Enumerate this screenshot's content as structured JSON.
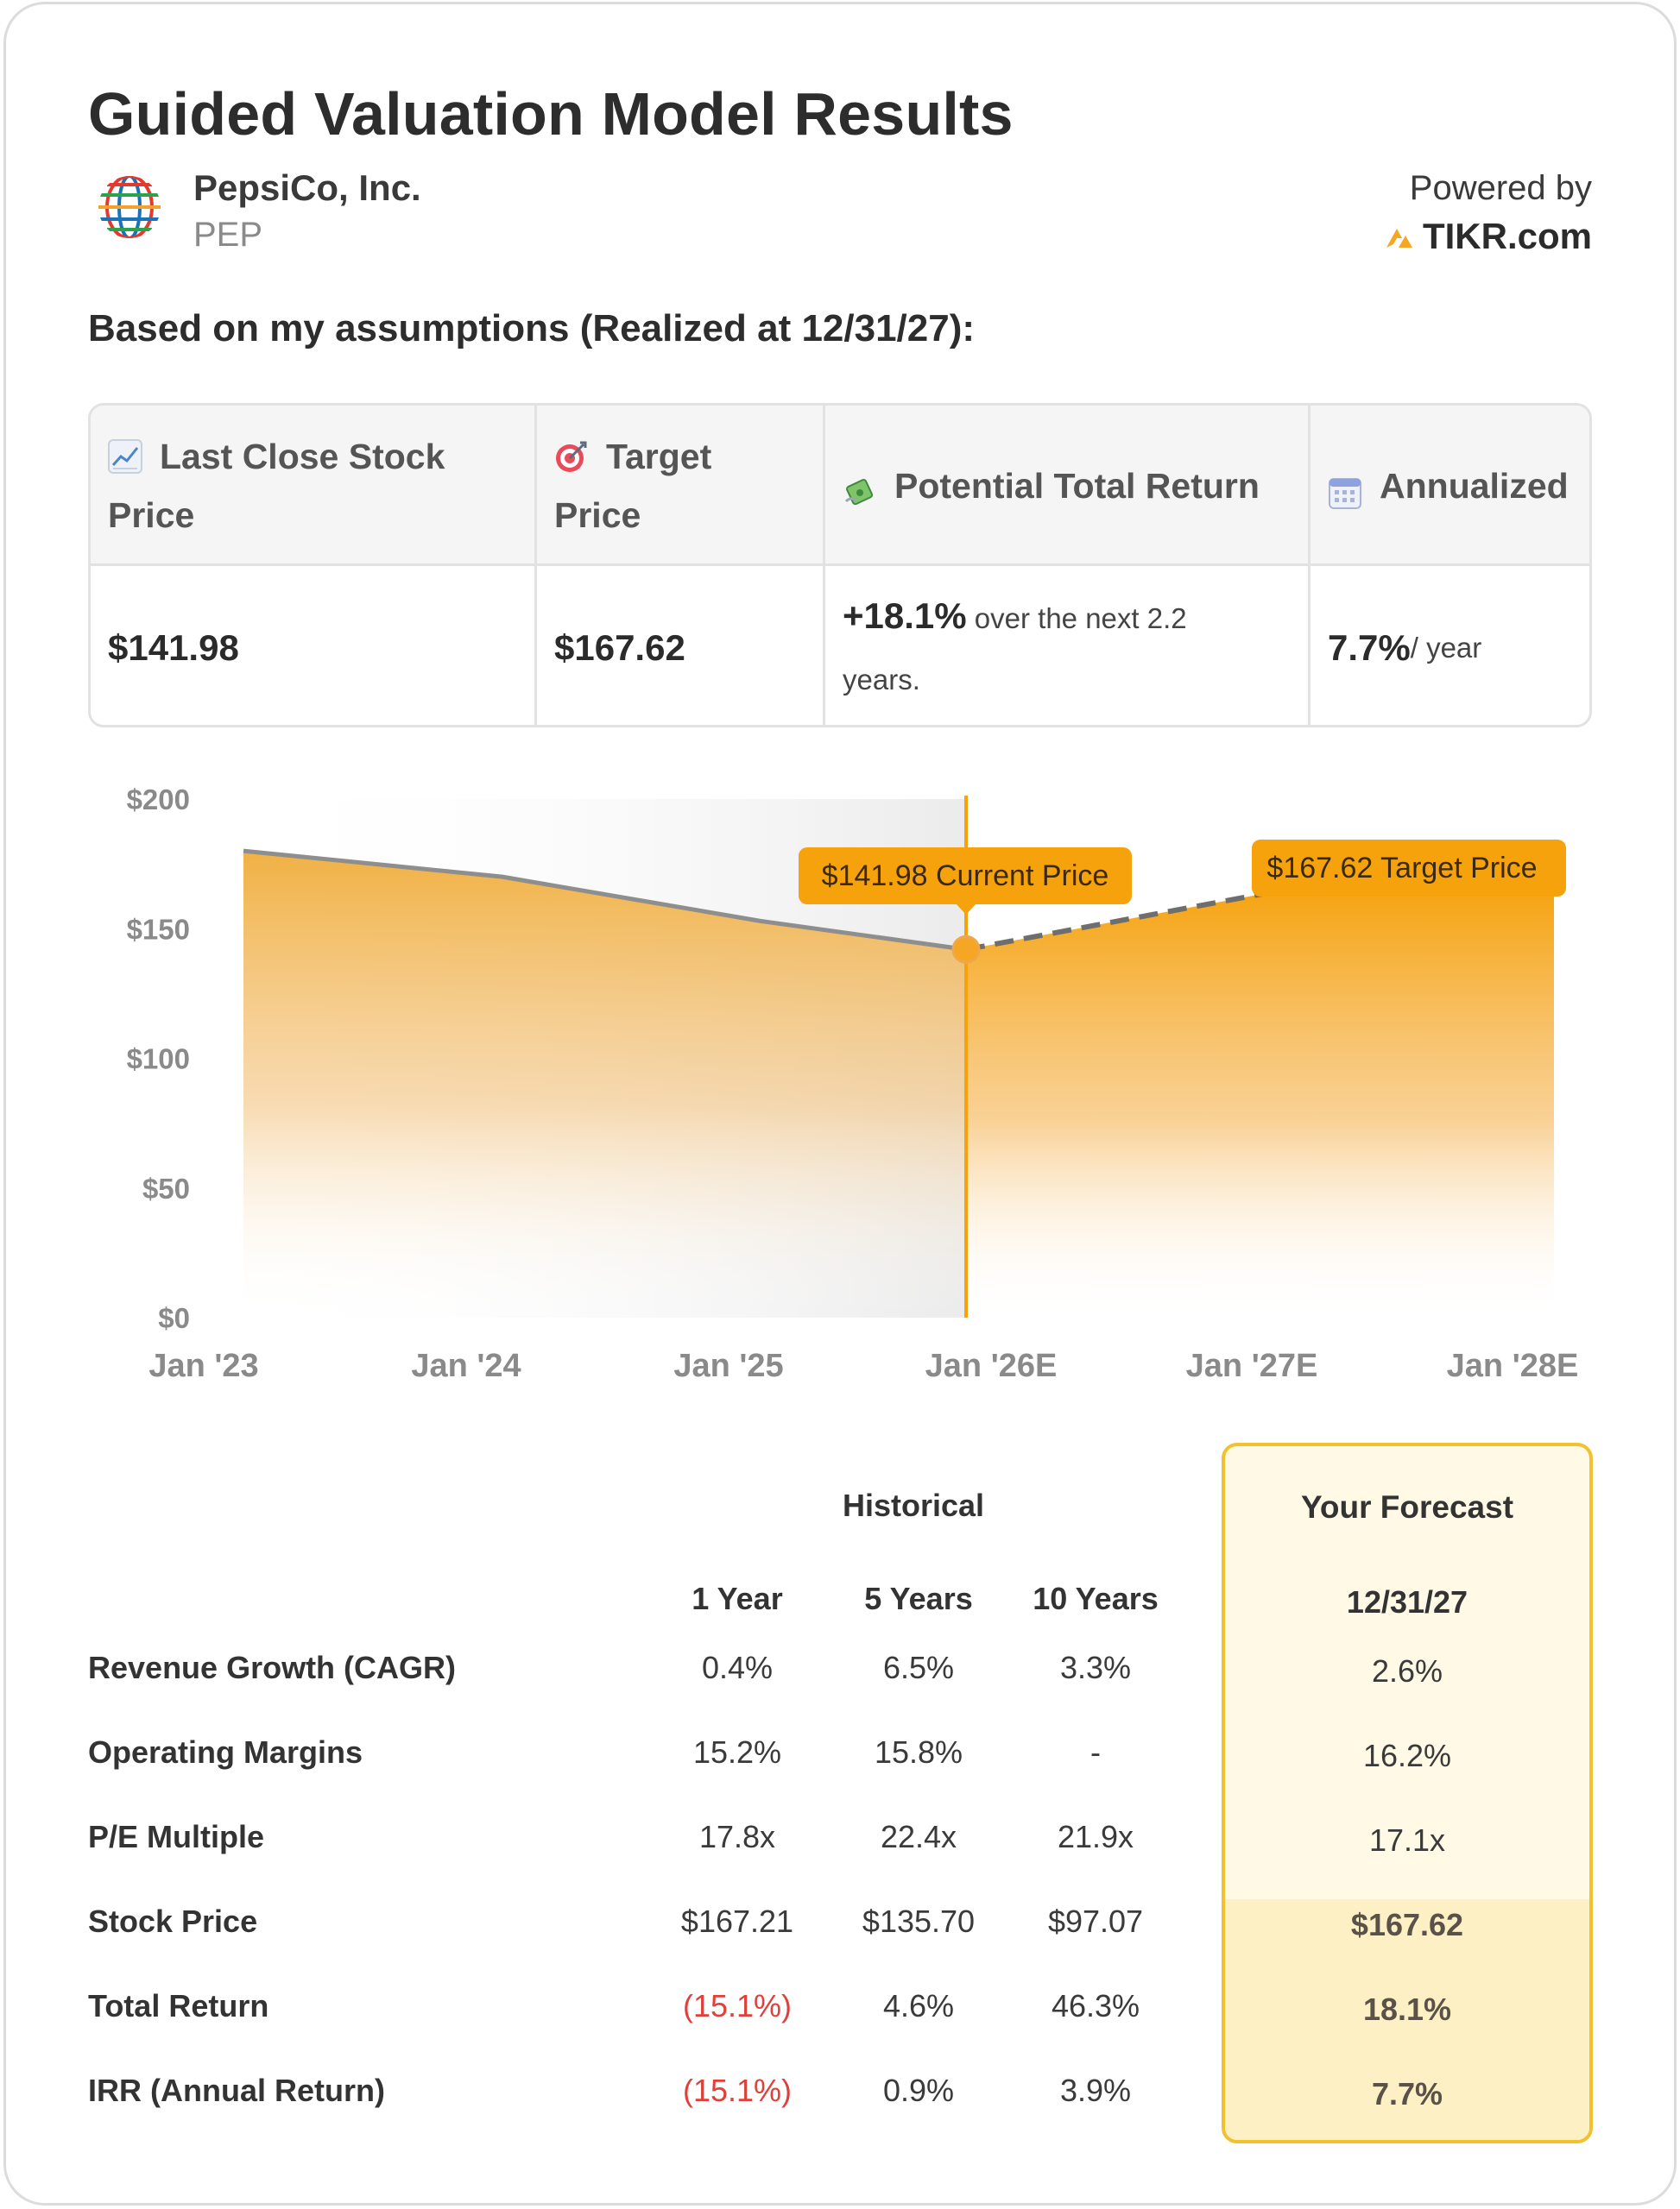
{
  "title": "Guided Valuation Model Results",
  "company": {
    "name": "PepsiCo, Inc.",
    "ticker": "PEP"
  },
  "powered_by": {
    "label": "Powered by",
    "brand": "TIKR.com"
  },
  "assumptions_heading": "Based on my assumptions (Realized at 12/31/27):",
  "summary": {
    "headers": {
      "last_close_line1": "Last Close Stock",
      "last_close_line2": "Price",
      "target_line1": "Target",
      "target_line2": "Price",
      "potential": "Potential Total Return",
      "annualized": "Annualized"
    },
    "values": {
      "last_close": "$141.98",
      "target": "$167.62",
      "potential_pct": "+18.1%",
      "potential_suffix_line1": " over the next 2.2",
      "potential_suffix_line2": "years.",
      "annualized_pct": "7.7%",
      "annualized_suffix": " / year"
    },
    "icons": [
      "chart-increasing-icon",
      "target-icon",
      "money-with-wings-icon",
      "calendar-icon"
    ]
  },
  "chart_data": {
    "type": "area",
    "y_ticks": [
      "$200",
      "$150",
      "$100",
      "$50",
      "$0"
    ],
    "x_ticks": [
      "Jan '23",
      "Jan '24",
      "Jan '25",
      "Jan '26E",
      "Jan '27E",
      "Jan '28E"
    ],
    "ylim": [
      0,
      200
    ],
    "historical": [
      {
        "x": "Jan '23",
        "y": 180
      },
      {
        "x": "Jan '24",
        "y": 170
      },
      {
        "x": "Jan '25",
        "y": 153
      },
      {
        "x": "current",
        "y": 141.98
      }
    ],
    "forecast": [
      {
        "x": "current",
        "y": 141.98
      },
      {
        "x": "target",
        "y": 167.62
      }
    ],
    "current_label": "$141.98 Current Price",
    "target_label": "$167.62 Target Price",
    "colors": {
      "area": "#f5a623",
      "historical_line": "#8e8e8e",
      "forecast_line": "#6e6e6e",
      "marker": "#f5a623"
    }
  },
  "table": {
    "historical_title": "Historical",
    "forecast_title": "Your Forecast",
    "columns": [
      "1 Year",
      "5 Years",
      "10 Years"
    ],
    "forecast_date": "12/31/27",
    "rows": [
      {
        "label": "Revenue Growth (CAGR)",
        "values": [
          "0.4%",
          "6.5%",
          "3.3%"
        ],
        "forecast": "2.6%"
      },
      {
        "label": "Operating Margins",
        "values": [
          "15.2%",
          "15.8%",
          "-"
        ],
        "forecast": "16.2%"
      },
      {
        "label": "P/E Multiple",
        "values": [
          "17.8x",
          "22.4x",
          "21.9x"
        ],
        "forecast": "17.1x"
      },
      {
        "label": "Stock Price",
        "values": [
          "$167.21",
          "$135.70",
          "$97.07"
        ],
        "forecast": "$167.62"
      },
      {
        "label": "Total Return",
        "values": [
          "(15.1%)",
          "4.6%",
          "46.3%"
        ],
        "forecast": "18.1%"
      },
      {
        "label": "IRR (Annual Return)",
        "values": [
          "(15.1%)",
          "0.9%",
          "3.9%"
        ],
        "forecast": "7.7%"
      }
    ],
    "negative_color": "#e0403a"
  }
}
